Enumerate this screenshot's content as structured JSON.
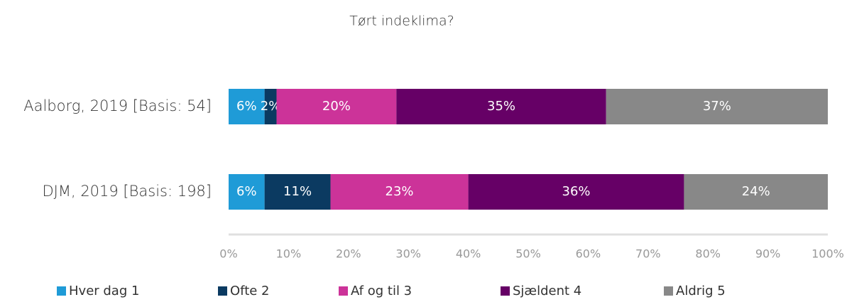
{
  "chart_data": {
    "type": "stacked_bar",
    "orientation": "horizontal",
    "title": "Tørt indeklima?",
    "categories": [
      "Aalborg, 2019 [Basis: 54]",
      "DJM, 2019 [Basis: 198]"
    ],
    "series": [
      {
        "name": "Hver dag 1",
        "color": "#1f9bd7",
        "values": [
          6,
          6
        ],
        "value_labels": [
          "6%",
          "6%"
        ]
      },
      {
        "name": "Ofte 2",
        "color": "#0b3a61",
        "values": [
          2,
          11
        ],
        "value_labels": [
          "2%",
          "11%"
        ]
      },
      {
        "name": "Af og til 3",
        "color": "#cc3399",
        "values": [
          20,
          23
        ],
        "value_labels": [
          "20%",
          "23%"
        ]
      },
      {
        "name": "Sjældent 4",
        "color": "#660066",
        "values": [
          35,
          36
        ],
        "value_labels": [
          "35%",
          "36%"
        ]
      },
      {
        "name": "Aldrig 5",
        "color": "#888888",
        "values": [
          37,
          24
        ],
        "value_labels": [
          "37%",
          "24%"
        ]
      }
    ],
    "xlim": [
      0,
      100
    ],
    "xticks": [
      {
        "value": 0,
        "label": "0%"
      },
      {
        "value": 10,
        "label": "10%"
      },
      {
        "value": 20,
        "label": "20%"
      },
      {
        "value": 30,
        "label": "30%"
      },
      {
        "value": 40,
        "label": "40%"
      },
      {
        "value": 50,
        "label": "50%"
      },
      {
        "value": 60,
        "label": "60%"
      },
      {
        "value": 70,
        "label": "70%"
      },
      {
        "value": 80,
        "label": "80%"
      },
      {
        "value": 90,
        "label": "90%"
      },
      {
        "value": 100,
        "label": "100%"
      }
    ],
    "legend": "bottom"
  }
}
